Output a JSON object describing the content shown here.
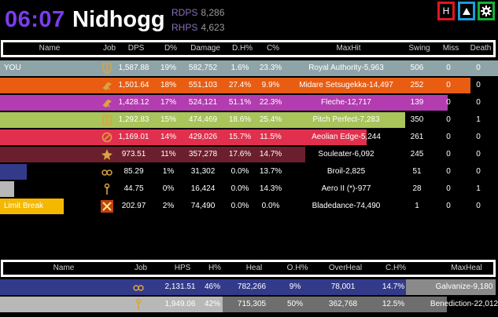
{
  "header": {
    "timer": "06:07",
    "zone": "Nidhogg",
    "rdps_label": "RDPS",
    "rdps_value": "8,286",
    "rhps_label": "RHPS",
    "rhps_value": "4,623",
    "btn_h": "H",
    "btn_up_icon": "triangle-up-icon",
    "btn_gear_icon": "gear-icon"
  },
  "dps_table": {
    "columns": [
      "Name",
      "Job",
      "DPS",
      "D%",
      "Damage",
      "D.H%",
      "C%",
      "MaxHit",
      "Swing",
      "Miss",
      "Death"
    ],
    "rows": [
      {
        "name": "YOU",
        "job": "paladin",
        "dps": "1,587.88",
        "dp": "19%",
        "damage": "582,752",
        "dh": "1.6%",
        "c": "23.3%",
        "maxhit": "Royal Authority-5,963",
        "swing": "506",
        "miss": "0",
        "death": "0",
        "color": "#8fa4a8",
        "fill": 1.0
      },
      {
        "name": "",
        "job": "red-mage",
        "dps": "1,501.64",
        "dp": "18%",
        "damage": "551,103",
        "dh": "27.4%",
        "c": "9.9%",
        "maxhit": "Midare Setsugekka-14,497",
        "swing": "252",
        "miss": "0",
        "death": "0",
        "color": "#e85d12",
        "fill": 0.945
      },
      {
        "name": "",
        "job": "red-mage",
        "dps": "1,428.12",
        "dp": "17%",
        "damage": "524,121",
        "dh": "51.1%",
        "c": "22.3%",
        "maxhit": "Fleche-12,717",
        "swing": "139",
        "miss": "0",
        "death": "0",
        "color": "#b23cb0",
        "fill": 0.899
      },
      {
        "name": "",
        "job": "warrior",
        "dps": "1,292.83",
        "dp": "15%",
        "damage": "474,469",
        "dh": "18.6%",
        "c": "25.4%",
        "maxhit": "Pitch Perfect-7,283",
        "swing": "350",
        "miss": "0",
        "death": "1",
        "color": "#a8c45a",
        "fill": 0.814
      },
      {
        "name": "",
        "job": "dancer",
        "dps": "1,169.01",
        "dp": "14%",
        "damage": "429,026",
        "dh": "15.7%",
        "c": "11.5%",
        "maxhit": "Aeolian Edge-5,244",
        "swing": "261",
        "miss": "0",
        "death": "0",
        "color": "#e0304e",
        "fill": 0.736
      },
      {
        "name": "",
        "job": "dark-knight",
        "dps": "973.51",
        "dp": "11%",
        "damage": "357,278",
        "dh": "17.6%",
        "c": "14.7%",
        "maxhit": "Souleater-6,092",
        "swing": "245",
        "miss": "0",
        "death": "0",
        "color": "#6b1f2c",
        "fill": 0.613
      },
      {
        "name": "",
        "job": "scholar",
        "dps": "85.29",
        "dp": "1%",
        "damage": "31,302",
        "dh": "0.0%",
        "c": "13.7%",
        "maxhit": "Broil-2,825",
        "swing": "51",
        "miss": "0",
        "death": "0",
        "color": "#343a8a",
        "fill": 0.054
      },
      {
        "name": "",
        "job": "white-mage",
        "dps": "44.75",
        "dp": "0%",
        "damage": "16,424",
        "dh": "0.0%",
        "c": "14.3%",
        "maxhit": "Aero II (*)-977",
        "swing": "28",
        "miss": "0",
        "death": "1",
        "color": "#b8b8b8",
        "fill": 0.028
      },
      {
        "name": "Limit Break",
        "job": "limit-break",
        "dps": "202.97",
        "dp": "2%",
        "damage": "74,490",
        "dh": "0.0%",
        "c": "0.0%",
        "maxhit": "Bladedance-74,490",
        "swing": "1",
        "miss": "0",
        "death": "0",
        "color": "#f5b800",
        "fill": 0.128
      }
    ]
  },
  "heal_table": {
    "columns": [
      "Name",
      "Job",
      "HPS",
      "H%",
      "Heal",
      "O.H%",
      "OverHeal",
      "C.H%",
      "MaxHeal"
    ],
    "rows": [
      {
        "name": "",
        "job": "scholar",
        "hps": "2,131.51",
        "hp": "46%",
        "heal": "782,266",
        "oh": "9%",
        "overheal": "78,001",
        "ch": "14.7%",
        "maxheal": "Galvanize-9,180",
        "color": "#343a8a",
        "over_color": "#8a8a8a",
        "fill": 0.815,
        "over_fill": 0.18
      },
      {
        "name": "",
        "job": "white-mage",
        "hps": "1,949.06",
        "hp": "42%",
        "heal": "715,305",
        "oh": "50%",
        "overheal": "362,768",
        "ch": "12.5%",
        "maxheal": "Benediction-22,012",
        "color": "#b8b8b8",
        "over_color": "#6e6e6e",
        "fill": 0.447,
        "over_fill": 0.45
      }
    ]
  }
}
